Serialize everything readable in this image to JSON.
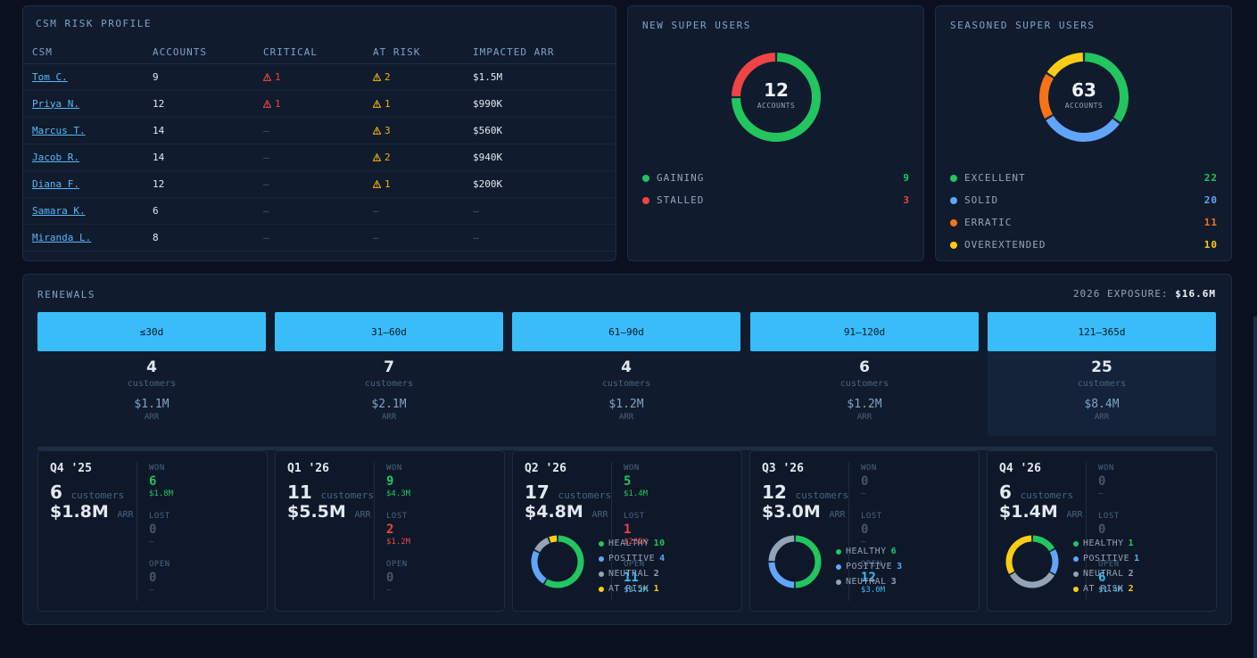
{
  "csm_panel": {
    "title": "CSM RISK PROFILE",
    "columns": [
      "CSM",
      "ACCOUNTS",
      "CRITICAL",
      "AT RISK",
      "IMPACTED ARR"
    ],
    "rows": [
      {
        "name": "Tom C.",
        "accounts": "9",
        "critical": "1",
        "at_risk": "2",
        "arr": "$1.5M"
      },
      {
        "name": "Priya N.",
        "accounts": "12",
        "critical": "1",
        "at_risk": "1",
        "arr": "$990K"
      },
      {
        "name": "Marcus T.",
        "accounts": "14",
        "critical": "—",
        "at_risk": "3",
        "arr": "$560K"
      },
      {
        "name": "Jacob R.",
        "accounts": "14",
        "critical": "—",
        "at_risk": "2",
        "arr": "$940K"
      },
      {
        "name": "Diana F.",
        "accounts": "12",
        "critical": "—",
        "at_risk": "1",
        "arr": "$200K"
      },
      {
        "name": "Samara K.",
        "accounts": "6",
        "critical": "—",
        "at_risk": "—",
        "arr": "—"
      },
      {
        "name": "Miranda L.",
        "accounts": "8",
        "critical": "—",
        "at_risk": "—",
        "arr": "—"
      }
    ]
  },
  "new_super_users": {
    "title": "NEW SUPER USERS",
    "total": "12",
    "total_label": "ACCOUNTS",
    "segments": [
      {
        "label": "GAINING",
        "count": 9,
        "color": "#22c55e"
      },
      {
        "label": "STALLED",
        "count": 3,
        "color": "#ef4444"
      }
    ]
  },
  "seasoned_super_users": {
    "title": "SEASONED SUPER USERS",
    "total": "63",
    "total_label": "ACCOUNTS",
    "segments": [
      {
        "label": "EXCELLENT",
        "count": 22,
        "color": "#22c55e"
      },
      {
        "label": "SOLID",
        "count": 20,
        "color": "#60a5fa"
      },
      {
        "label": "ERRATIC",
        "count": 11,
        "color": "#f97316"
      },
      {
        "label": "OVEREXTENDED",
        "count": 10,
        "color": "#facc15"
      }
    ]
  },
  "renewals": {
    "title": "RENEWALS",
    "exposure_label": "2026 EXPOSURE:",
    "exposure_value": "$16.6M",
    "buckets": [
      {
        "label": "≤30d",
        "count": "4",
        "count_label": "customers",
        "arr": "$1.1M",
        "arr_label": "ARR"
      },
      {
        "label": "31–60d",
        "count": "7",
        "count_label": "customers",
        "arr": "$2.1M",
        "arr_label": "ARR"
      },
      {
        "label": "61–90d",
        "count": "4",
        "count_label": "customers",
        "arr": "$1.2M",
        "arr_label": "ARR"
      },
      {
        "label": "91–120d",
        "count": "6",
        "count_label": "customers",
        "arr": "$1.2M",
        "arr_label": "ARR"
      },
      {
        "label": "121–365d",
        "count": "25",
        "count_label": "customers",
        "arr": "$8.4M",
        "arr_label": "ARR"
      }
    ],
    "quarters": [
      {
        "title": "Q4 '25",
        "customers": "6",
        "customers_label": "customers",
        "arr": "$1.8M",
        "arr_label": "ARR",
        "won": {
          "label": "WON",
          "count": "6",
          "arr": "$1.8M"
        },
        "lost": {
          "label": "LOST",
          "count": "0",
          "arr": "—"
        },
        "open": {
          "label": "OPEN",
          "count": "0",
          "arr": "—"
        },
        "health": []
      },
      {
        "title": "Q1 '26",
        "customers": "11",
        "customers_label": "customers",
        "arr": "$5.5M",
        "arr_label": "ARR",
        "won": {
          "label": "WON",
          "count": "9",
          "arr": "$4.3M"
        },
        "lost": {
          "label": "LOST",
          "count": "2",
          "arr": "$1.2M"
        },
        "open": {
          "label": "OPEN",
          "count": "0",
          "arr": "—"
        },
        "health": []
      },
      {
        "title": "Q2 '26",
        "customers": "17",
        "customers_label": "customers",
        "arr": "$4.8M",
        "arr_label": "ARR",
        "won": {
          "label": "WON",
          "count": "5",
          "arr": "$1.4M"
        },
        "lost": {
          "label": "LOST",
          "count": "1",
          "arr": "$235K"
        },
        "open": {
          "label": "OPEN",
          "count": "11",
          "arr": "$3.2M"
        },
        "health": [
          {
            "label": "HEALTHY",
            "count": 10,
            "color": "#22c55e"
          },
          {
            "label": "POSITIVE",
            "count": 4,
            "color": "#60a5fa"
          },
          {
            "label": "NEUTRAL",
            "count": 2,
            "color": "#94a3b8"
          },
          {
            "label": "AT RISK",
            "count": 1,
            "color": "#facc15"
          }
        ]
      },
      {
        "title": "Q3 '26",
        "customers": "12",
        "customers_label": "customers",
        "arr": "$3.0M",
        "arr_label": "ARR",
        "won": {
          "label": "WON",
          "count": "0",
          "arr": "—"
        },
        "lost": {
          "label": "LOST",
          "count": "0",
          "arr": "—"
        },
        "open": {
          "label": "OPEN",
          "count": "12",
          "arr": "$3.0M"
        },
        "health": [
          {
            "label": "HEALTHY",
            "count": 6,
            "color": "#22c55e"
          },
          {
            "label": "POSITIVE",
            "count": 3,
            "color": "#60a5fa"
          },
          {
            "label": "NEUTRAL",
            "count": 3,
            "color": "#94a3b8"
          }
        ]
      },
      {
        "title": "Q4 '26",
        "customers": "6",
        "customers_label": "customers",
        "arr": "$1.4M",
        "arr_label": "ARR",
        "won": {
          "label": "WON",
          "count": "0",
          "arr": "—"
        },
        "lost": {
          "label": "LOST",
          "count": "0",
          "arr": "—"
        },
        "open": {
          "label": "OPEN",
          "count": "6",
          "arr": "$1.4M"
        },
        "health": [
          {
            "label": "HEALTHY",
            "count": 1,
            "color": "#22c55e"
          },
          {
            "label": "POSITIVE",
            "count": 1,
            "color": "#60a5fa"
          },
          {
            "label": "NEUTRAL",
            "count": 2,
            "color": "#94a3b8"
          },
          {
            "label": "AT RISK",
            "count": 2,
            "color": "#facc15"
          }
        ]
      }
    ]
  },
  "colors": {
    "accent": "#38bdf8",
    "critical": "#ef4444",
    "at_risk": "#eab308",
    "won": "#22c55e"
  }
}
